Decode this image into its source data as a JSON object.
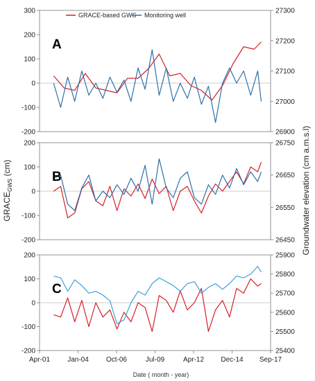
{
  "chart_data": {
    "type": "line",
    "legend": {
      "placement": "top-center",
      "entries": [
        {
          "name": "GRACE-based GWS",
          "color": "#d41f26"
        },
        {
          "name": "Monitoring well",
          "color": "#2f6fa8"
        }
      ]
    },
    "xlabel": "Date ( month - year)",
    "ylabel_left": {
      "main": "GRACE",
      "sub": "GWS",
      "unit": " (cm)"
    },
    "ylabel_right": "Groundwater elevation (cm a.m.s.l)",
    "xlim": [
      "2001-04",
      "2017-09"
    ],
    "x_ticks": [
      "Apr-01",
      "Jan-04",
      "Oct-06",
      "Jul-09",
      "Apr-12",
      "Dec-14",
      "Sep-17"
    ],
    "panels": [
      {
        "label": "A",
        "ylim_left": [
          -200,
          300
        ],
        "yticks_left": [
          "-200",
          "-100",
          "0",
          "100",
          "200",
          "300"
        ],
        "ylim_right": [
          26900,
          27300
        ],
        "yticks_right": [
          "26900",
          "27000",
          "27100",
          "27200",
          "27300"
        ],
        "series": [
          {
            "name": "GRACE-based GWS",
            "color": "#d41f26",
            "x": [
              "2002-04",
              "2003-01",
              "2003-10",
              "2004-07",
              "2005-04",
              "2006-01",
              "2006-10",
              "2007-07",
              "2008-04",
              "2009-01",
              "2009-10",
              "2010-07",
              "2011-04",
              "2012-01",
              "2012-10",
              "2013-07",
              "2014-04",
              "2015-01",
              "2015-10",
              "2016-07",
              "2017-01"
            ],
            "y": [
              30,
              -20,
              -30,
              40,
              -20,
              -30,
              -40,
              20,
              20,
              60,
              120,
              30,
              40,
              -10,
              -30,
              -70,
              -10,
              80,
              150,
              140,
              170
            ]
          },
          {
            "name": "Monitoring well",
            "color": "#2f6fa8",
            "x": [
              "2002-04",
              "2002-10",
              "2003-04",
              "2003-10",
              "2004-04",
              "2004-10",
              "2005-04",
              "2005-10",
              "2006-04",
              "2006-10",
              "2007-04",
              "2007-10",
              "2008-04",
              "2008-10",
              "2009-04",
              "2009-10",
              "2010-04",
              "2010-10",
              "2011-04",
              "2011-10",
              "2012-04",
              "2012-10",
              "2013-04",
              "2013-10",
              "2014-04",
              "2014-10",
              "2015-04",
              "2015-10",
              "2016-04",
              "2016-10",
              "2017-01"
            ],
            "y": [
              27060,
              26980,
              27080,
              27000,
              27100,
              27020,
              27060,
              27010,
              27080,
              27030,
              27070,
              27000,
              27110,
              27040,
              27170,
              27020,
              27110,
              27000,
              27060,
              27010,
              27080,
              26990,
              27050,
              26930,
              27060,
              27110,
              27060,
              27100,
              27020,
              27100,
              27000
            ]
          }
        ]
      },
      {
        "label": "B",
        "ylim_left": [
          -200,
          200
        ],
        "yticks_left": [
          "-200",
          "-100",
          "0",
          "100",
          "200"
        ],
        "ylim_right": [
          26450,
          26750
        ],
        "yticks_right": [
          "26450",
          "26550",
          "26650",
          "26750"
        ],
        "series": [
          {
            "name": "GRACE-based GWS",
            "color": "#d41f26",
            "x": [
              "2002-04",
              "2002-10",
              "2003-04",
              "2003-10",
              "2004-04",
              "2004-10",
              "2005-04",
              "2005-10",
              "2006-04",
              "2006-10",
              "2007-04",
              "2007-10",
              "2008-04",
              "2008-10",
              "2009-04",
              "2009-10",
              "2010-04",
              "2010-10",
              "2011-04",
              "2011-10",
              "2012-04",
              "2012-10",
              "2013-04",
              "2013-10",
              "2014-04",
              "2014-10",
              "2015-04",
              "2015-10",
              "2016-04",
              "2016-10",
              "2017-01"
            ],
            "y": [
              0,
              20,
              -110,
              -90,
              10,
              40,
              -40,
              -60,
              20,
              -80,
              10,
              -20,
              30,
              -30,
              50,
              -10,
              20,
              -80,
              0,
              20,
              -40,
              -90,
              -20,
              30,
              0,
              40,
              80,
              30,
              100,
              80,
              120
            ]
          },
          {
            "name": "Monitoring well",
            "color": "#2f6fa8",
            "x": [
              "2002-04",
              "2002-10",
              "2003-04",
              "2003-10",
              "2004-04",
              "2004-10",
              "2005-04",
              "2005-10",
              "2006-04",
              "2006-10",
              "2007-04",
              "2007-10",
              "2008-04",
              "2008-10",
              "2009-04",
              "2009-10",
              "2010-04",
              "2010-10",
              "2011-04",
              "2011-10",
              "2012-04",
              "2012-10",
              "2013-04",
              "2013-10",
              "2014-04",
              "2014-10",
              "2015-04",
              "2015-10",
              "2016-04",
              "2016-10",
              "2017-01"
            ],
            "y": [
              26640,
              26650,
              26560,
              26540,
              26610,
              26650,
              26570,
              26600,
              26580,
              26620,
              26590,
              26640,
              26600,
              26680,
              26560,
              26700,
              26610,
              26580,
              26640,
              26660,
              26580,
              26560,
              26620,
              26590,
              26650,
              26610,
              26670,
              26620,
              26660,
              26630,
              26660
            ]
          }
        ]
      },
      {
        "label": "C",
        "ylim_left": [
          -200,
          200
        ],
        "yticks_left": [
          "-200",
          "-100",
          "0",
          "100",
          "200"
        ],
        "ylim_right": [
          25400,
          25900
        ],
        "yticks_right": [
          "25400",
          "25500",
          "25600",
          "25700",
          "25800",
          "25900"
        ],
        "series": [
          {
            "name": "GRACE-based GWS",
            "color": "#d41f26",
            "x": [
              "2002-04",
              "2002-10",
              "2003-04",
              "2003-10",
              "2004-04",
              "2004-10",
              "2005-04",
              "2005-10",
              "2006-04",
              "2006-10",
              "2007-04",
              "2007-10",
              "2008-04",
              "2008-10",
              "2009-04",
              "2009-10",
              "2010-04",
              "2010-10",
              "2011-04",
              "2011-10",
              "2012-04",
              "2012-10",
              "2013-04",
              "2013-10",
              "2014-04",
              "2014-10",
              "2015-04",
              "2015-10",
              "2016-04",
              "2016-10",
              "2017-01"
            ],
            "y": [
              -50,
              -60,
              20,
              -80,
              10,
              -100,
              0,
              -60,
              -30,
              -110,
              -40,
              -80,
              0,
              -20,
              -120,
              30,
              10,
              -40,
              50,
              -30,
              0,
              60,
              -120,
              -30,
              10,
              -60,
              60,
              40,
              100,
              70,
              80
            ]
          },
          {
            "name": "Monitoring well",
            "color": "#3aa0d8",
            "x": [
              "2002-04",
              "2002-10",
              "2003-04",
              "2003-10",
              "2004-04",
              "2004-10",
              "2005-04",
              "2005-10",
              "2006-04",
              "2006-10",
              "2007-04",
              "2007-10",
              "2008-04",
              "2008-10",
              "2009-04",
              "2009-10",
              "2010-04",
              "2010-10",
              "2011-04",
              "2011-10",
              "2012-04",
              "2012-10",
              "2013-04",
              "2013-10",
              "2014-04",
              "2014-10",
              "2015-04",
              "2015-10",
              "2016-04",
              "2016-10",
              "2017-01"
            ],
            "y": [
              25790,
              25780,
              25710,
              25770,
              25740,
              25700,
              25710,
              25690,
              25660,
              25540,
              25560,
              25650,
              25710,
              25690,
              25750,
              25780,
              25760,
              25740,
              25710,
              25750,
              25760,
              25700,
              25730,
              25750,
              25720,
              25750,
              25790,
              25780,
              25800,
              25840,
              25810
            ]
          }
        ]
      }
    ]
  }
}
